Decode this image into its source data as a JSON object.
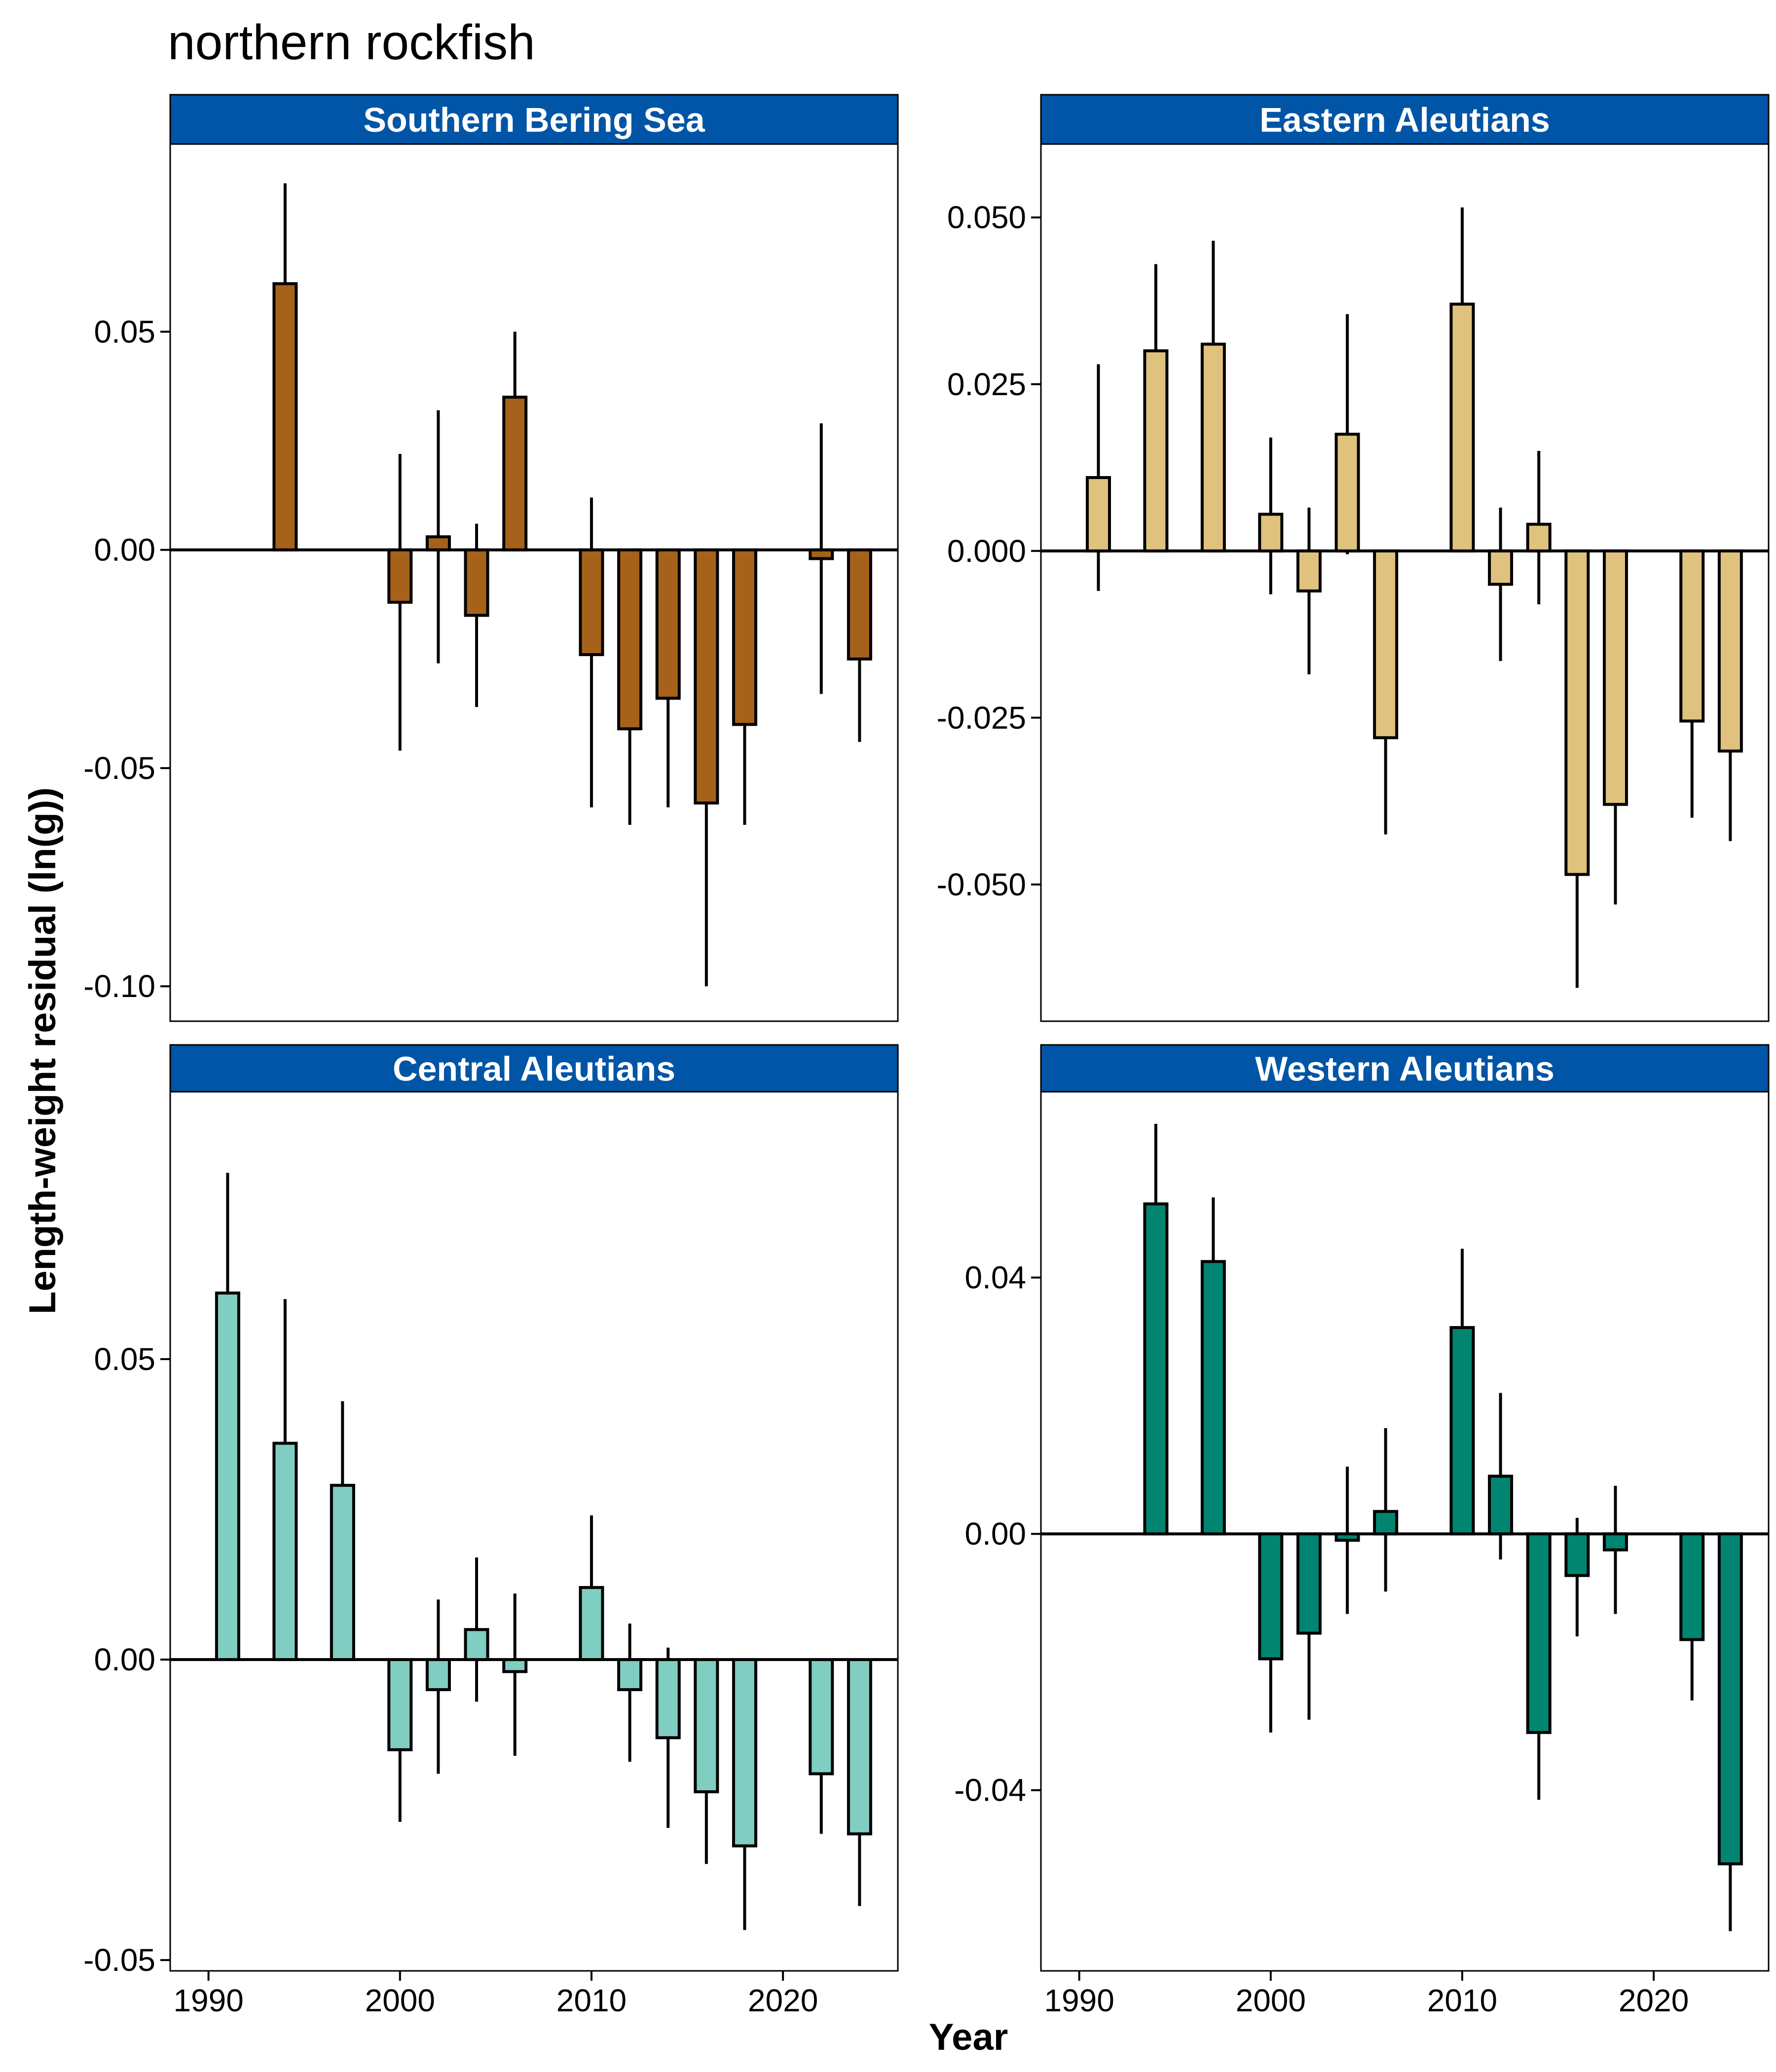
{
  "title": "northern rockfish",
  "xlabel": "Year",
  "ylabel": "Length-weight residual (ln(g))",
  "colors": {
    "strip": "#0055A6",
    "strip_text": "#ffffff"
  },
  "chart_data": [
    {
      "type": "bar",
      "panel": "Southern Bering Sea",
      "bar_color": "#A6611A",
      "xlim": [
        1988,
        2026
      ],
      "ylim": [
        -0.108,
        0.093
      ],
      "xticks": [
        1990,
        2000,
        2010,
        2020
      ],
      "xtick_labels": [
        "1990",
        "2000",
        "2010",
        "2020"
      ],
      "yticks": [
        -0.1,
        -0.05,
        0.0,
        0.05
      ],
      "ytick_labels": [
        "-0.10",
        "-0.05",
        "0.00",
        "0.05"
      ],
      "x": [
        1994,
        2000,
        2002,
        2004,
        2006,
        2010,
        2012,
        2014,
        2016,
        2018,
        2022,
        2024
      ],
      "values": [
        0.061,
        -0.012,
        0.003,
        -0.015,
        0.035,
        -0.024,
        -0.041,
        -0.034,
        -0.058,
        -0.04,
        -0.002,
        -0.025
      ],
      "err_low": [
        0.061,
        -0.046,
        -0.026,
        -0.036,
        0.035,
        -0.059,
        -0.063,
        -0.059,
        -0.1,
        -0.063,
        -0.033,
        -0.044
      ],
      "err_high": [
        0.084,
        0.022,
        0.032,
        0.006,
        0.05,
        0.012,
        -0.041,
        -0.034,
        -0.058,
        -0.04,
        0.029,
        -0.025
      ]
    },
    {
      "type": "bar",
      "panel": "Eastern Aleutians",
      "bar_color": "#DFC27D",
      "xlim": [
        1988,
        2026
      ],
      "ylim": [
        -0.0705,
        0.061
      ],
      "xticks": [
        1990,
        2000,
        2010,
        2020
      ],
      "xtick_labels": [
        "1990",
        "2000",
        "2010",
        "2020"
      ],
      "yticks": [
        -0.05,
        -0.025,
        0.0,
        0.025,
        0.05
      ],
      "ytick_labels": [
        "-0.050",
        "-0.025",
        "0.000",
        "0.025",
        "0.050"
      ],
      "x": [
        1991,
        1994,
        1997,
        2000,
        2002,
        2004,
        2006,
        2010,
        2012,
        2014,
        2016,
        2018,
        2022,
        2024
      ],
      "values": [
        0.011,
        0.03,
        0.031,
        0.0055,
        -0.006,
        0.0175,
        -0.028,
        0.037,
        -0.005,
        0.004,
        -0.0485,
        -0.038,
        -0.0255,
        -0.03
      ],
      "err_low": [
        -0.006,
        0.03,
        0.031,
        -0.0065,
        -0.0185,
        -0.0005,
        -0.0425,
        0.037,
        -0.0165,
        -0.008,
        -0.0655,
        -0.053,
        -0.04,
        -0.0435
      ],
      "err_high": [
        0.028,
        0.043,
        0.0465,
        0.017,
        0.0065,
        0.0355,
        -0.028,
        0.0515,
        0.0065,
        0.015,
        -0.0485,
        -0.038,
        -0.0255,
        -0.03
      ]
    },
    {
      "type": "bar",
      "panel": "Central Aleutians",
      "bar_color": "#80CDC1",
      "xlim": [
        1988,
        2026
      ],
      "ylim": [
        -0.0518,
        0.0945
      ],
      "xticks": [
        1990,
        2000,
        2010,
        2020
      ],
      "xtick_labels": [
        "1990",
        "2000",
        "2010",
        "2020"
      ],
      "yticks": [
        -0.05,
        0.0,
        0.05
      ],
      "ytick_labels": [
        "-0.05",
        "0.00",
        "0.05"
      ],
      "x": [
        1991,
        1994,
        1997,
        2000,
        2002,
        2004,
        2006,
        2010,
        2012,
        2014,
        2016,
        2018,
        2022,
        2024
      ],
      "values": [
        0.061,
        0.036,
        0.029,
        -0.015,
        -0.005,
        0.005,
        -0.002,
        0.012,
        -0.005,
        -0.013,
        -0.022,
        -0.031,
        -0.019,
        -0.029
      ],
      "err_low": [
        0.061,
        0.036,
        0.029,
        -0.027,
        -0.019,
        -0.007,
        -0.016,
        0.012,
        -0.017,
        -0.028,
        -0.034,
        -0.045,
        -0.029,
        -0.041
      ],
      "err_high": [
        0.081,
        0.06,
        0.043,
        -0.015,
        0.01,
        0.017,
        0.011,
        0.024,
        0.006,
        0.002,
        -0.022,
        -0.031,
        -0.019,
        -0.029
      ]
    },
    {
      "type": "bar",
      "panel": "Western Aleutians",
      "bar_color": "#018571",
      "xlim": [
        1988,
        2026
      ],
      "ylim": [
        -0.0682,
        0.069
      ],
      "xticks": [
        1990,
        2000,
        2010,
        2020
      ],
      "xtick_labels": [
        "1990",
        "2000",
        "2010",
        "2020"
      ],
      "yticks": [
        -0.04,
        0.0,
        0.04
      ],
      "ytick_labels": [
        "-0.04",
        "0.00",
        "0.04"
      ],
      "x": [
        1994,
        1997,
        2000,
        2002,
        2004,
        2006,
        2010,
        2012,
        2014,
        2016,
        2018,
        2022,
        2024
      ],
      "values": [
        0.0515,
        0.0425,
        -0.0195,
        -0.0155,
        -0.001,
        0.0035,
        0.0322,
        0.009,
        -0.031,
        -0.0065,
        -0.0025,
        -0.0165,
        -0.0515
      ],
      "err_low": [
        0.0515,
        0.0425,
        -0.031,
        -0.029,
        -0.0125,
        -0.009,
        0.0322,
        -0.004,
        -0.0415,
        -0.016,
        -0.0125,
        -0.026,
        -0.062
      ],
      "err_high": [
        0.064,
        0.0525,
        -0.0195,
        -0.0155,
        0.0105,
        0.0165,
        0.0445,
        0.022,
        -0.031,
        0.0025,
        0.0075,
        -0.0165,
        -0.0515
      ]
    }
  ]
}
